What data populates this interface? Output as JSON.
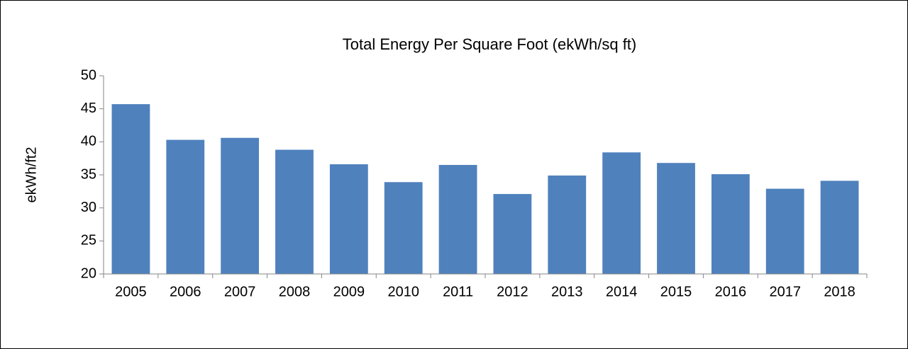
{
  "chart_data": {
    "type": "bar",
    "title": "Total Energy Per Square Foot (ekWh/sq ft)",
    "y_label": "ekWh/ft2",
    "categories": [
      "2005",
      "2006",
      "2007",
      "2008",
      "2009",
      "2010",
      "2011",
      "2012",
      "2013",
      "2014",
      "2015",
      "2016",
      "2017",
      "2018"
    ],
    "values": [
      45.7,
      40.3,
      40.6,
      38.8,
      36.6,
      33.9,
      36.5,
      32.1,
      34.9,
      38.4,
      36.8,
      35.1,
      32.9,
      34.1
    ],
    "color": "#4f81bd",
    "ylim": [
      20,
      50
    ],
    "yticks": [
      20,
      25,
      30,
      35,
      40,
      45,
      50
    ],
    "grid": false
  }
}
